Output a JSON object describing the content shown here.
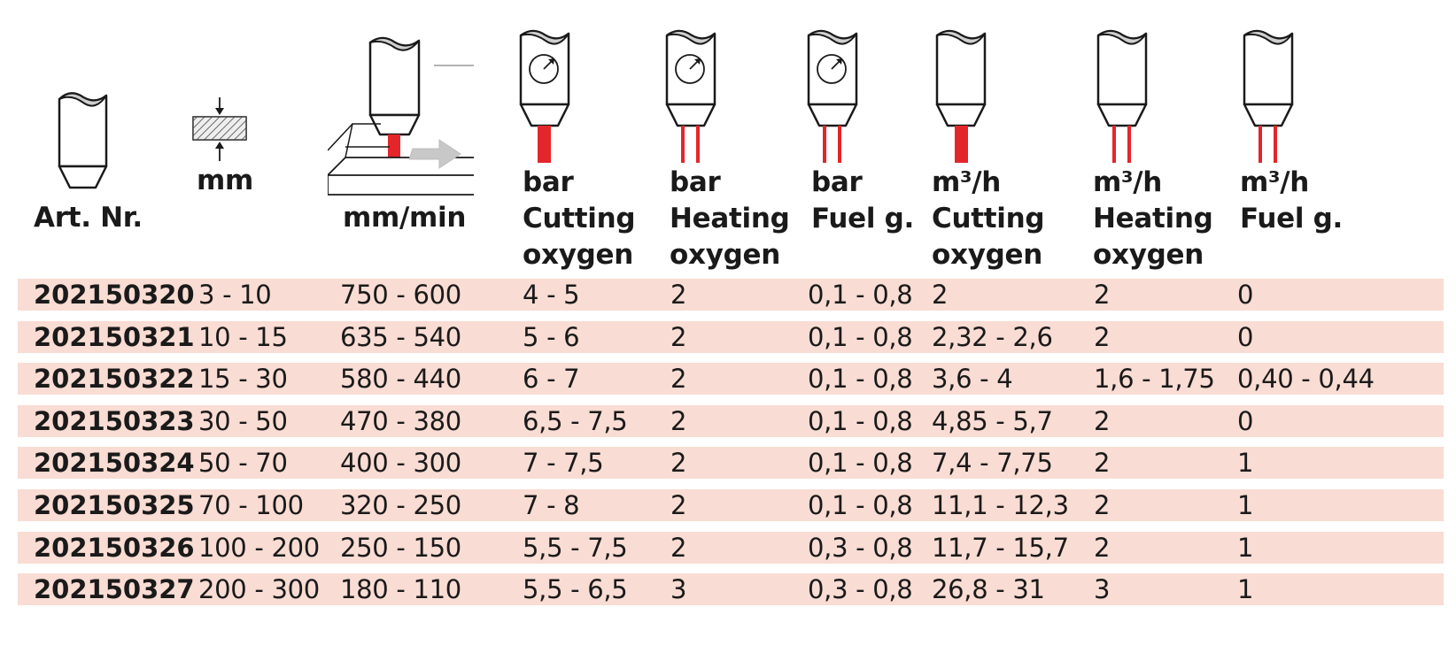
{
  "headers": {
    "art_nr": "Art. Nr.",
    "thickness_unit": "mm",
    "speed_unit": "mm/min",
    "cutting_bar": {
      "unit": "bar",
      "line1": "Cutting",
      "line2": "oxygen"
    },
    "heating_bar": {
      "unit": "bar",
      "line1": "Heating",
      "line2": "oxygen"
    },
    "fuel_bar": {
      "unit": "bar",
      "line1": "Fuel g."
    },
    "cutting_flow": {
      "unit": "m³/h",
      "line1": "Cutting",
      "line2": "oxygen"
    },
    "heating_flow": {
      "unit": "m³/h",
      "line1": "Heating",
      "line2": "oxygen"
    },
    "fuel_flow": {
      "unit": "m³/h",
      "line1": "Fuel g."
    }
  },
  "icons": {
    "nozzle": "nozzle-icon",
    "thickness": "material-thickness-icon",
    "cutting": "cutting-process-icon",
    "pressure": "pressure-gauge-nozzle-icon",
    "flow": "flow-nozzle-icon"
  },
  "colors": {
    "flame": "#e3262a",
    "row_band": "#f9dcd3",
    "arrow": "#c8c8c8"
  },
  "rows": [
    [
      "202150320",
      "3 - 10",
      "750 - 600",
      "4 - 5",
      "2",
      "0,1 - 0,8",
      "2",
      "2",
      "0"
    ],
    [
      "202150321",
      "10 - 15",
      "635 - 540",
      "5 - 6",
      "2",
      "0,1 - 0,8",
      "2,32 - 2,6",
      "2",
      "0"
    ],
    [
      "202150322",
      "15 - 30",
      "580 - 440",
      "6 - 7",
      "2",
      "0,1 - 0,8",
      "3,6 - 4",
      "1,6 - 1,75",
      "0,40 - 0,44"
    ],
    [
      "202150323",
      "30 - 50",
      "470 - 380",
      "6,5 - 7,5",
      "2",
      "0,1 - 0,8",
      "4,85 - 5,7",
      "2",
      "0"
    ],
    [
      "202150324",
      "50 - 70",
      "400 - 300",
      "7 - 7,5",
      "2",
      "0,1 - 0,8",
      "7,4 - 7,75",
      "2",
      "1"
    ],
    [
      "202150325",
      "70 - 100",
      "320 - 250",
      "7 - 8",
      "2",
      "0,1 - 0,8",
      "11,1 - 12,3",
      "2",
      "1"
    ],
    [
      "202150326",
      "100 - 200",
      "250 - 150",
      "5,5 - 7,5",
      "2",
      "0,3 - 0,8",
      "11,7 - 15,7",
      "2",
      "1"
    ],
    [
      "202150327",
      "200 - 300",
      "180 - 110",
      "5,5 - 6,5",
      "3",
      "0,3 - 0,8",
      "26,8 - 31",
      "3",
      "1"
    ]
  ]
}
